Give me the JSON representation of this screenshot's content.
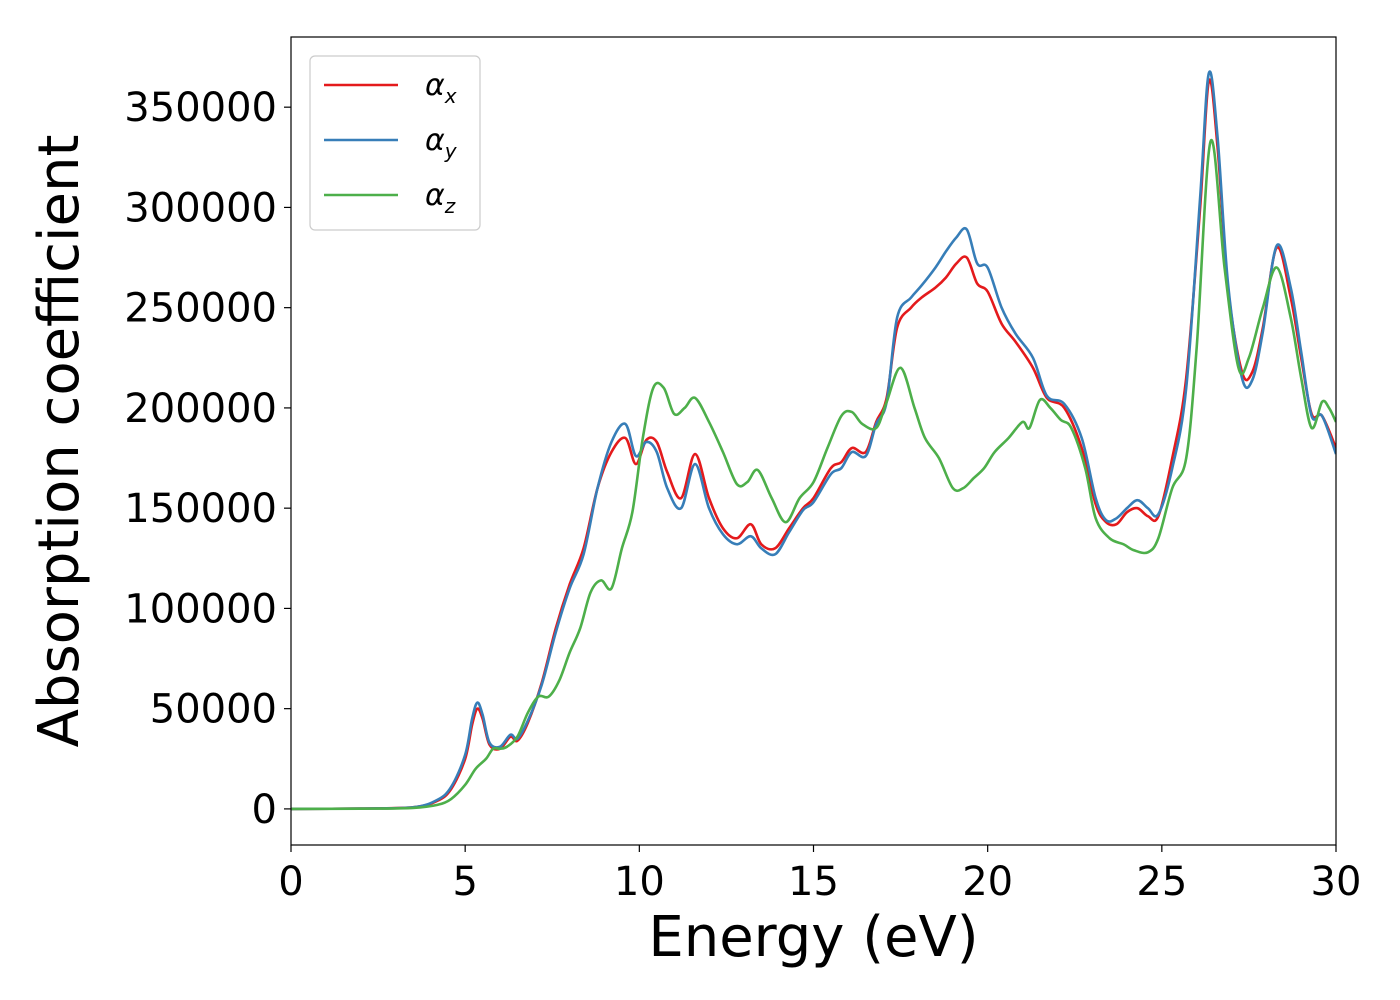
{
  "chart_data": {
    "type": "line",
    "xlabel": "Energy (eV)",
    "ylabel": "Absorption coefficient",
    "xlim": [
      0,
      30
    ],
    "ylim": [
      -18000,
      385000
    ],
    "x_ticks": [
      0,
      5,
      10,
      15,
      20,
      25,
      30
    ],
    "y_ticks": [
      0,
      50000,
      100000,
      150000,
      200000,
      250000,
      300000,
      350000
    ],
    "grid": false,
    "legend_position": "upper-left",
    "series": [
      {
        "name": "αx",
        "symbol": "α",
        "subscript": "x",
        "color": "#e41a1c",
        "x": [
          0,
          2,
          3.5,
          4.2,
          4.6,
          5.0,
          5.2,
          5.35,
          5.5,
          5.7,
          6.0,
          6.3,
          6.5,
          6.8,
          7.2,
          7.6,
          8.0,
          8.4,
          8.8,
          9.2,
          9.6,
          9.9,
          10.2,
          10.5,
          10.8,
          11.2,
          11.6,
          12.0,
          12.4,
          12.8,
          13.2,
          13.5,
          13.9,
          14.3,
          14.7,
          15.0,
          15.5,
          15.8,
          16.1,
          16.5,
          16.8,
          17.1,
          17.4,
          17.8,
          18.1,
          18.5,
          18.8,
          19.1,
          19.4,
          19.7,
          20.0,
          20.4,
          20.8,
          21.3,
          21.7,
          22.2,
          22.7,
          23.1,
          23.4,
          23.7,
          24.0,
          24.3,
          24.6,
          24.9,
          25.3,
          25.7,
          26.1,
          26.35,
          26.6,
          26.9,
          27.3,
          27.6,
          27.9,
          28.3,
          28.7,
          29.0,
          29.3,
          29.6,
          30.0
        ],
        "y": [
          0,
          200,
          800,
          4000,
          10000,
          25000,
          42000,
          50000,
          45000,
          32000,
          30000,
          36000,
          34000,
          43000,
          63000,
          90000,
          112000,
          130000,
          160000,
          178000,
          185000,
          172000,
          184000,
          183000,
          168000,
          155000,
          177000,
          155000,
          140000,
          135000,
          142000,
          132000,
          130000,
          140000,
          150000,
          155000,
          170000,
          173000,
          180000,
          178000,
          193000,
          205000,
          240000,
          250000,
          255000,
          260000,
          265000,
          272000,
          275000,
          262000,
          258000,
          242000,
          233000,
          220000,
          205000,
          200000,
          180000,
          152000,
          143000,
          142000,
          148000,
          150000,
          146000,
          146000,
          175000,
          215000,
          300000,
          363000,
          330000,
          260000,
          218000,
          218000,
          240000,
          280000,
          255000,
          225000,
          197000,
          196000,
          180000
        ]
      },
      {
        "name": "αy",
        "symbol": "α",
        "subscript": "y",
        "color": "#377eb8",
        "x": [
          0,
          2,
          3.5,
          4.2,
          4.6,
          5.0,
          5.2,
          5.35,
          5.5,
          5.7,
          6.0,
          6.3,
          6.5,
          6.8,
          7.2,
          7.6,
          8.0,
          8.4,
          8.8,
          9.2,
          9.6,
          9.9,
          10.2,
          10.5,
          10.8,
          11.2,
          11.6,
          12.0,
          12.4,
          12.8,
          13.2,
          13.5,
          13.9,
          14.3,
          14.7,
          15.0,
          15.5,
          15.8,
          16.1,
          16.5,
          16.8,
          17.1,
          17.4,
          17.8,
          18.1,
          18.5,
          18.8,
          19.1,
          19.4,
          19.7,
          20.0,
          20.4,
          20.8,
          21.3,
          21.7,
          22.2,
          22.7,
          23.1,
          23.4,
          23.7,
          24.0,
          24.3,
          24.6,
          24.9,
          25.3,
          25.7,
          26.1,
          26.35,
          26.6,
          26.9,
          27.3,
          27.6,
          27.9,
          28.3,
          28.7,
          29.0,
          29.3,
          29.6,
          30.0
        ],
        "y": [
          0,
          200,
          800,
          4500,
          11000,
          27000,
          45000,
          53000,
          47000,
          33000,
          31000,
          37000,
          35000,
          44000,
          62000,
          88000,
          110000,
          127000,
          160000,
          183000,
          192000,
          176000,
          183000,
          178000,
          160000,
          150000,
          172000,
          150000,
          137000,
          132000,
          136000,
          130000,
          127000,
          138000,
          149000,
          153000,
          167000,
          170000,
          178000,
          176000,
          192000,
          203000,
          245000,
          255000,
          261000,
          270000,
          278000,
          285000,
          289000,
          272000,
          270000,
          250000,
          237000,
          225000,
          206000,
          202000,
          185000,
          155000,
          144000,
          145000,
          150000,
          154000,
          150000,
          147000,
          170000,
          210000,
          305000,
          367000,
          335000,
          262000,
          215000,
          214000,
          238000,
          281000,
          260000,
          228000,
          196000,
          196000,
          177000
        ]
      },
      {
        "name": "αz",
        "symbol": "α",
        "subscript": "z",
        "color": "#4daf4a",
        "x": [
          0,
          2,
          3.5,
          4.2,
          4.6,
          5.0,
          5.3,
          5.6,
          5.8,
          6.0,
          6.2,
          6.5,
          6.8,
          7.1,
          7.4,
          7.7,
          8.0,
          8.3,
          8.6,
          8.9,
          9.2,
          9.5,
          9.8,
          10.1,
          10.4,
          10.7,
          11.0,
          11.3,
          11.6,
          12.0,
          12.4,
          12.8,
          13.1,
          13.4,
          13.8,
          14.2,
          14.6,
          15.0,
          15.4,
          15.8,
          16.1,
          16.4,
          16.8,
          17.1,
          17.5,
          17.9,
          18.2,
          18.6,
          19.0,
          19.3,
          19.6,
          19.9,
          20.2,
          20.6,
          21.0,
          21.2,
          21.5,
          21.8,
          22.1,
          22.4,
          22.8,
          23.1,
          23.5,
          23.9,
          24.2,
          24.6,
          24.9,
          25.3,
          25.7,
          26.0,
          26.4,
          26.8,
          27.2,
          27.5,
          27.9,
          28.3,
          28.7,
          29.0,
          29.3,
          29.6,
          29.8,
          30.0
        ],
        "y": [
          0,
          100,
          500,
          2000,
          5000,
          12000,
          20000,
          25000,
          30000,
          30000,
          31000,
          36000,
          48000,
          56000,
          56000,
          64000,
          78000,
          90000,
          108000,
          114000,
          110000,
          130000,
          148000,
          185000,
          210000,
          210000,
          197000,
          200000,
          205000,
          193000,
          178000,
          162000,
          163000,
          169000,
          155000,
          143000,
          155000,
          163000,
          180000,
          196000,
          198000,
          192000,
          190000,
          203000,
          220000,
          200000,
          185000,
          175000,
          160000,
          160000,
          165000,
          170000,
          178000,
          185000,
          193000,
          190000,
          204000,
          200000,
          194000,
          190000,
          170000,
          145000,
          135000,
          132000,
          129000,
          128000,
          135000,
          160000,
          175000,
          230000,
          333000,
          270000,
          220000,
          225000,
          250000,
          270000,
          245000,
          215000,
          190000,
          203000,
          200000,
          193000
        ]
      }
    ]
  }
}
